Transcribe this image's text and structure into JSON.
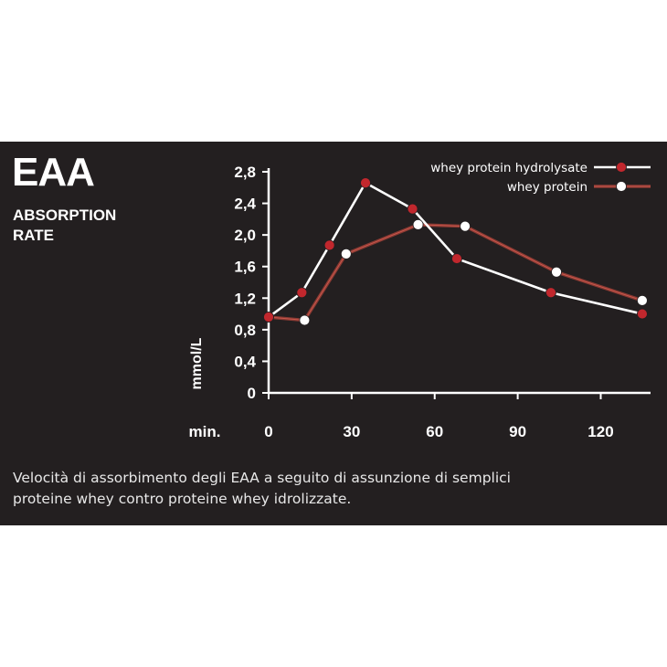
{
  "title": "EAA",
  "subtitle": [
    "ABSORPTION",
    "RATE"
  ],
  "caption": [
    "Velocità di assorbimento degli EAA a seguito di assunzione di semplici",
    "proteine whey contro proteine whey idrolizzate."
  ],
  "colors": {
    "background": "#231f20",
    "hydrolysate_line": "#ffffff",
    "hydrolysate_marker": "#c1272d",
    "whey_line": "#8a3a33",
    "whey_marker": "#ffffff"
  },
  "chart_data": {
    "type": "line",
    "xlabel": "min.",
    "ylabel": "mmol/L",
    "xlim": [
      0,
      138
    ],
    "ylim": [
      0,
      2.8
    ],
    "xticks": [
      {
        "value": 0,
        "label": "0"
      },
      {
        "value": 30,
        "label": "30"
      },
      {
        "value": 60,
        "label": "60"
      },
      {
        "value": 90,
        "label": "90"
      },
      {
        "value": 120,
        "label": "120"
      }
    ],
    "yticks": [
      {
        "value": 0,
        "label": "0"
      },
      {
        "value": 0.4,
        "label": "0,4"
      },
      {
        "value": 0.8,
        "label": "0,8"
      },
      {
        "value": 1.2,
        "label": "1,2"
      },
      {
        "value": 1.6,
        "label": "1,6"
      },
      {
        "value": 2.0,
        "label": "2,0"
      },
      {
        "value": 2.4,
        "label": "2,4"
      },
      {
        "value": 2.8,
        "label": "2,8"
      }
    ],
    "grid": false,
    "legend": "top-right",
    "series": [
      {
        "name": "whey protein hydrolysate",
        "x": [
          0,
          12,
          22,
          35,
          52,
          68,
          102,
          135
        ],
        "y": [
          0.96,
          1.27,
          1.87,
          2.66,
          2.33,
          1.7,
          1.27,
          1.0
        ]
      },
      {
        "name": "whey protein",
        "x": [
          0,
          13,
          28,
          54,
          71,
          104,
          135
        ],
        "y": [
          0.96,
          0.92,
          1.76,
          2.13,
          2.11,
          1.53,
          1.17
        ]
      }
    ]
  }
}
